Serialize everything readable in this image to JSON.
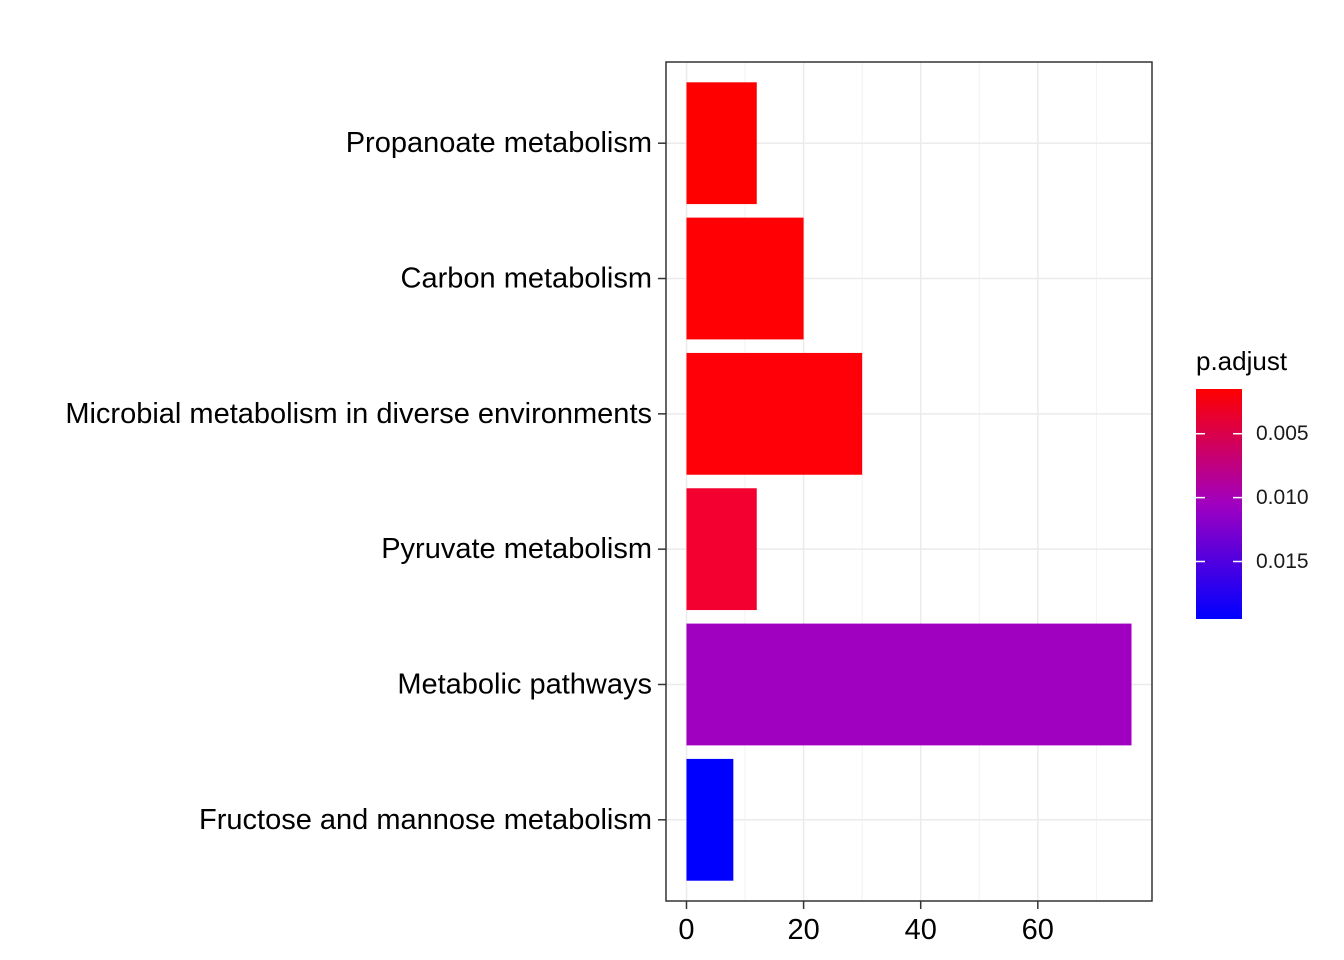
{
  "chart_data": {
    "type": "bar",
    "orientation": "horizontal",
    "categories": [
      "Propanoate metabolism",
      "Carbon metabolism",
      "Microbial metabolism in diverse environments",
      "Pyruvate metabolism",
      "Metabolic pathways",
      "Fructose and mannose metabolism"
    ],
    "values": [
      12,
      20,
      30,
      12,
      76,
      8
    ],
    "p_adjust": [
      0.002,
      0.002,
      0.002,
      0.0036,
      0.0117,
      0.019
    ],
    "colors": [
      "#FF0000",
      "#FF0004",
      "#FF0008",
      "#F40030",
      "#A000C0",
      "#0000FF"
    ],
    "xlim": [
      -3.5,
      79.5
    ],
    "xticks": [
      0,
      20,
      40,
      60
    ],
    "xtick_labels": [
      "0",
      "20",
      "40",
      "60"
    ],
    "grid": true,
    "legend": {
      "title": "p.adjust",
      "placement": "right",
      "colorbar": {
        "low_color": "#FF0000",
        "mid_color": "#A000C0",
        "high_color": "#0000FF",
        "range": [
          0.0015,
          0.0195
        ]
      },
      "ticks": [
        0.005,
        0.01,
        0.015
      ],
      "tick_labels": [
        "0.005",
        "0.010",
        "0.015"
      ]
    }
  }
}
